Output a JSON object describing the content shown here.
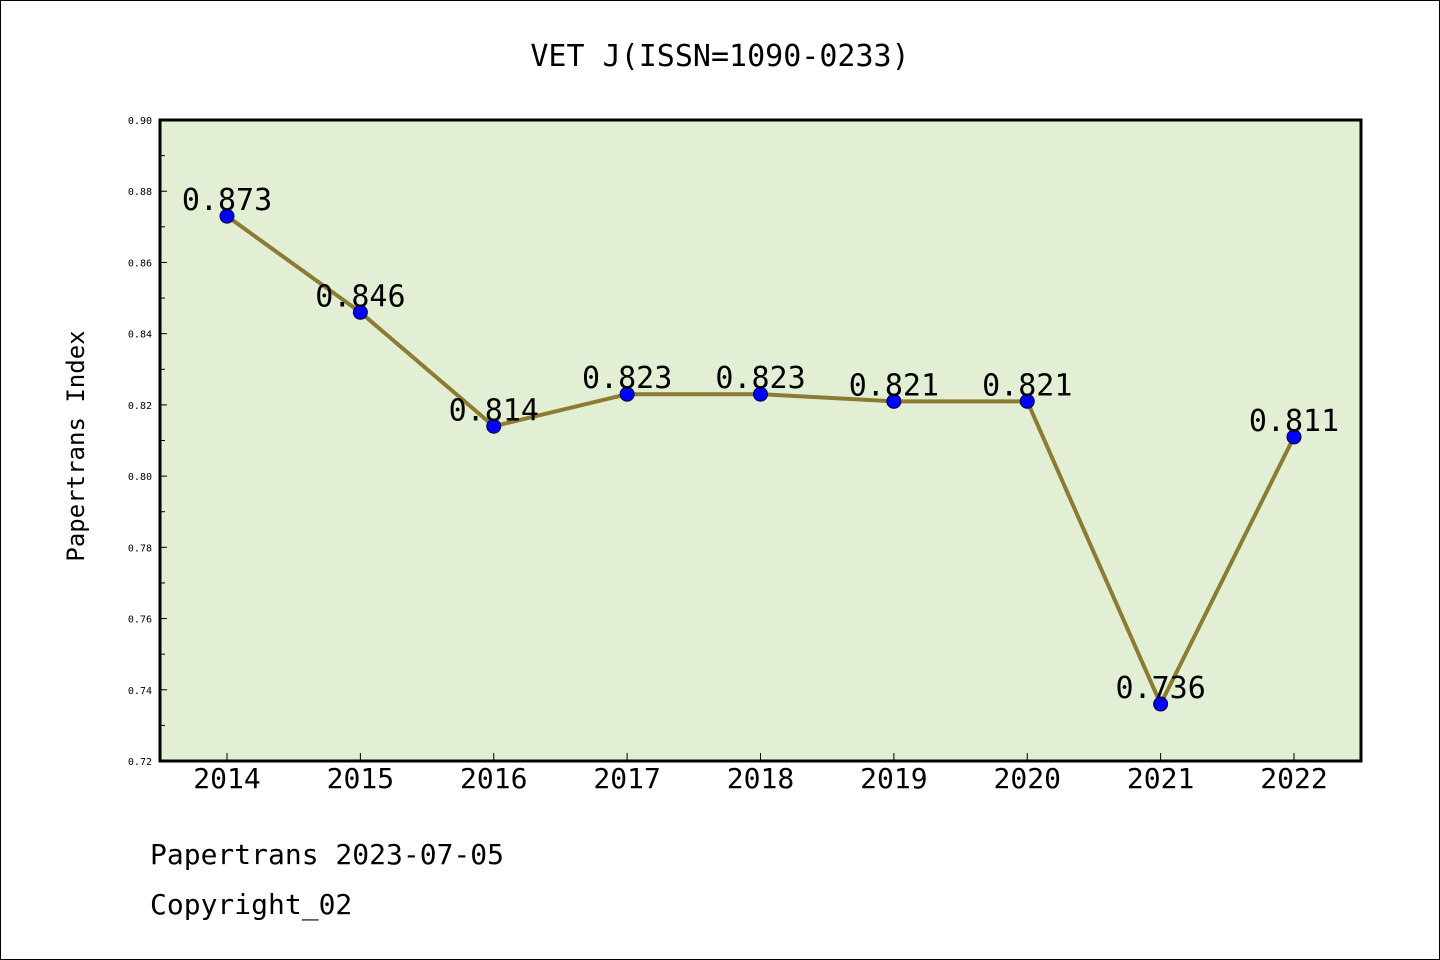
{
  "footer": {
    "line1": "Papertrans 2023-07-05",
    "line2": "Copyright_02"
  },
  "colors": {
    "plot_background": "#e2efd5",
    "line": "#8c7c33",
    "marker": "#0000ff"
  },
  "chart_data": {
    "type": "line",
    "title": "VET J(ISSN=1090-0233)",
    "xlabel": "",
    "ylabel": "Papertrans Index",
    "categories": [
      "2014",
      "2015",
      "2016",
      "2017",
      "2018",
      "2019",
      "2020",
      "2021",
      "2022"
    ],
    "values": [
      0.873,
      0.846,
      0.814,
      0.823,
      0.823,
      0.821,
      0.821,
      0.736,
      0.811
    ],
    "data_labels": [
      "0.873",
      "0.846",
      "0.814",
      "0.823",
      "0.823",
      "0.821",
      "0.821",
      "0.736",
      "0.811"
    ],
    "ylim": [
      0.72,
      0.9
    ],
    "yticks": [
      "0.72",
      "0.74",
      "0.76",
      "0.78",
      "0.80",
      "0.82",
      "0.84",
      "0.86",
      "0.88",
      "0.90"
    ],
    "grid": false,
    "legend": "none"
  }
}
